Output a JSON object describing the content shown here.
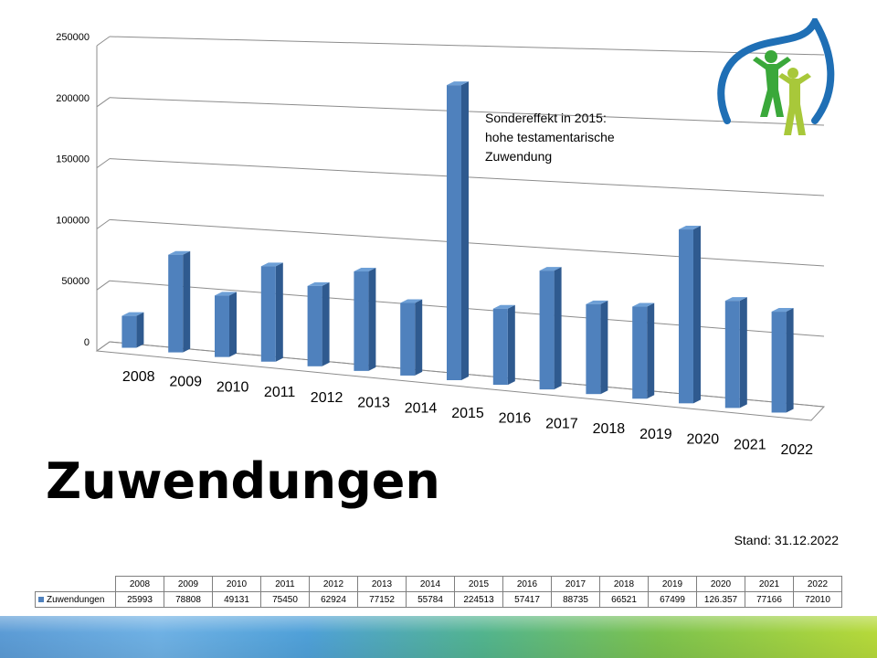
{
  "chart_data": {
    "type": "bar",
    "title": "Zuwendungen",
    "categories": [
      "2008",
      "2009",
      "2010",
      "2011",
      "2012",
      "2013",
      "2014",
      "2015",
      "2016",
      "2017",
      "2018",
      "2019",
      "2020",
      "2021",
      "2022"
    ],
    "series": [
      {
        "name": "Zuwendungen",
        "values": [
          25993,
          78808,
          49131,
          75450,
          62924,
          77152,
          55784,
          224513,
          57417,
          88735,
          66521,
          67499,
          126357,
          77166,
          72010
        ]
      }
    ],
    "table_values": [
      "25993",
      "78808",
      "49131",
      "75450",
      "62924",
      "77152",
      "55784",
      "224513",
      "57417",
      "88735",
      "66521",
      "67499",
      "126.357",
      "77166",
      "72010"
    ],
    "y_ticks": [
      0,
      50000,
      100000,
      150000,
      200000,
      250000
    ],
    "ylim": [
      0,
      250000
    ],
    "grid": true,
    "legend": "table",
    "bar_color": "#4f81bd",
    "annotation": [
      "Sondereffekt in 2015:",
      "hohe testamentarische",
      "Zuwendung"
    ]
  },
  "stand": "Stand: 31.12.2022",
  "logo": "tree-people-logo",
  "colors": {
    "bar": "#4f81bd",
    "bar_side": "#2f5a8f",
    "bar_top": "#6d9fd6",
    "logo_blue": "#1f6fb5",
    "logo_green": "#3aa83a",
    "logo_lime": "#a8c83a"
  }
}
